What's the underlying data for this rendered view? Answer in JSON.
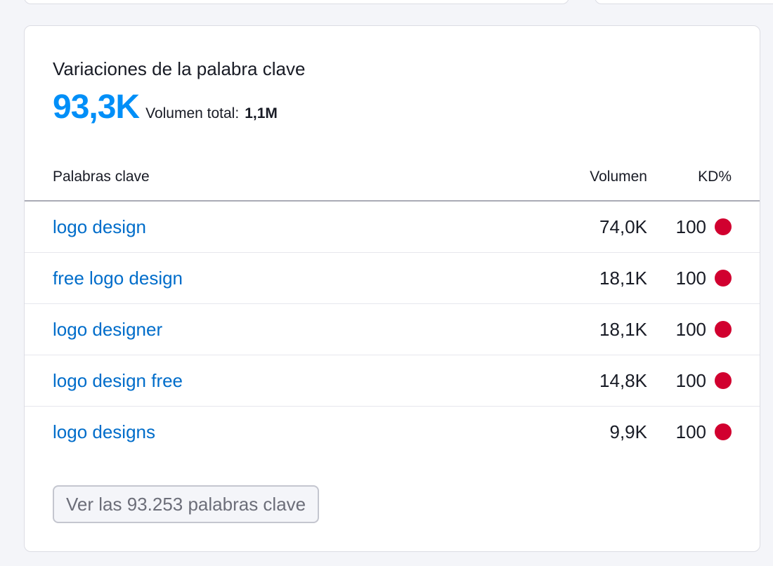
{
  "card": {
    "title": "Variaciones de la palabra clave",
    "metric_value": "93,3K",
    "total_label": "Volumen total:",
    "total_value": "1,1M"
  },
  "table": {
    "headers": {
      "keyword": "Palabras clave",
      "volume": "Volumen",
      "kd": "KD%"
    },
    "rows": [
      {
        "keyword": "logo design",
        "volume": "74,0K",
        "kd": "100"
      },
      {
        "keyword": "free logo design",
        "volume": "18,1K",
        "kd": "100"
      },
      {
        "keyword": "logo designer",
        "volume": "18,1K",
        "kd": "100"
      },
      {
        "keyword": "logo design free",
        "volume": "14,8K",
        "kd": "100"
      },
      {
        "keyword": "logo designs",
        "volume": "9,9K",
        "kd": "100"
      }
    ]
  },
  "footer": {
    "view_all_label": "Ver las 93.253 palabras clave"
  },
  "colors": {
    "accent": "#008ff8",
    "link": "#006dca",
    "kd_very_hard": "#d1002f"
  }
}
